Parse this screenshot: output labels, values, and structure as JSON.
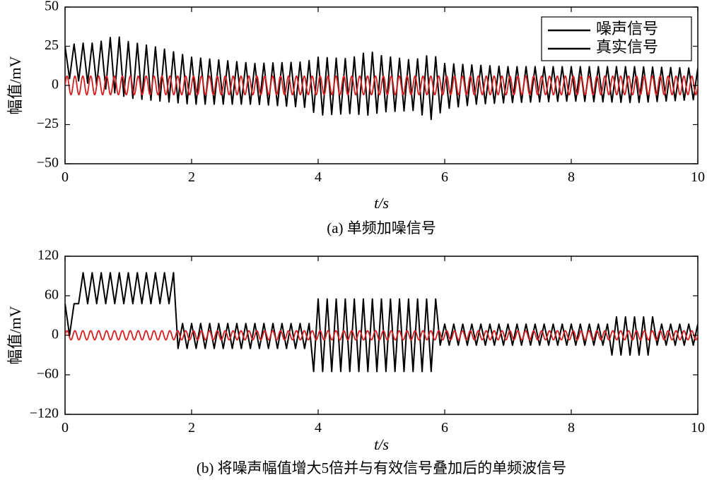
{
  "chart_data": [
    {
      "type": "line",
      "caption": "(a) 单频加噪信号",
      "xlabel": "t/s",
      "ylabel": "幅值/mV",
      "xlim": [
        0,
        10
      ],
      "ylim": [
        -50,
        50
      ],
      "xticks": [
        0,
        2,
        4,
        6,
        8,
        10
      ],
      "xtick_labels": [
        "0",
        "2",
        "4",
        "6",
        "8",
        "10"
      ],
      "yticks": [
        -50,
        -25,
        0,
        25,
        50
      ],
      "ytick_labels": [
        "−50",
        "−25",
        "0",
        "25",
        "50"
      ],
      "grid": false,
      "legend": {
        "position": "top-right",
        "entries": [
          "噪声信号",
          "真实信号"
        ]
      },
      "series": [
        {
          "name": "噪声信号",
          "color": "#000000",
          "frequency_hz": 7,
          "envelope": {
            "t": [
              0,
              0.2,
              0.5,
              0.8,
              1.0,
              1.5,
              2.0,
              3.0,
              3.8,
              4.0,
              4.5,
              4.8,
              5.0,
              5.5,
              5.8,
              6.0,
              6.5,
              7.0,
              8.0,
              9.0,
              10.0
            ],
            "max": [
              25,
              27,
              27,
              32,
              28,
              24,
              18,
              14,
              15,
              18,
              17,
              22,
              19,
              16,
              20,
              14,
              13,
              12,
              12,
              12,
              11
            ],
            "min": [
              5,
              3,
              0,
              -5,
              -8,
              -10,
              -12,
              -12,
              -14,
              -19,
              -18,
              -19,
              -17,
              -16,
              -22,
              -15,
              -12,
              -11,
              -10,
              -11,
              -9
            ]
          }
        },
        {
          "name": "真实信号",
          "color": "#d42020",
          "amplitude": 6,
          "frequency_hz": 8,
          "offset": 0
        }
      ]
    },
    {
      "type": "line",
      "caption": "(b) 将噪声幅值增大5倍并与有效信号叠加后的单频波信号",
      "xlabel": "t/s",
      "ylabel": "幅值/mV",
      "xlim": [
        0,
        10
      ],
      "ylim": [
        -120,
        120
      ],
      "xticks": [
        0,
        2,
        4,
        6,
        8,
        10
      ],
      "xtick_labels": [
        "0",
        "2",
        "4",
        "6",
        "8",
        "10"
      ],
      "yticks": [
        -120,
        -60,
        0,
        60,
        120
      ],
      "ytick_labels": [
        "−120",
        "−60",
        "0",
        "60",
        "120"
      ],
      "grid": false,
      "series": [
        {
          "color": "#000000",
          "frequency_hz": 7,
          "segments": [
            {
              "t_start": 0,
              "t_end": 0.15,
              "max": 48,
              "min": 0
            },
            {
              "t_start": 0.15,
              "t_end": 1.75,
              "max": 95,
              "min": 48
            },
            {
              "t_start": 1.75,
              "t_end": 3.9,
              "max": 18,
              "min": -20
            },
            {
              "t_start": 3.9,
              "t_end": 5.9,
              "max": 55,
              "min": -55
            },
            {
              "t_start": 5.9,
              "t_end": 8.6,
              "max": 17,
              "min": -15
            },
            {
              "t_start": 8.6,
              "t_end": 9.3,
              "max": 28,
              "min": -30
            },
            {
              "t_start": 9.3,
              "t_end": 10,
              "max": 17,
              "min": -15
            }
          ]
        },
        {
          "color": "#d42020",
          "amplitude": 7,
          "frequency_hz": 8,
          "offset": 0
        }
      ]
    }
  ]
}
